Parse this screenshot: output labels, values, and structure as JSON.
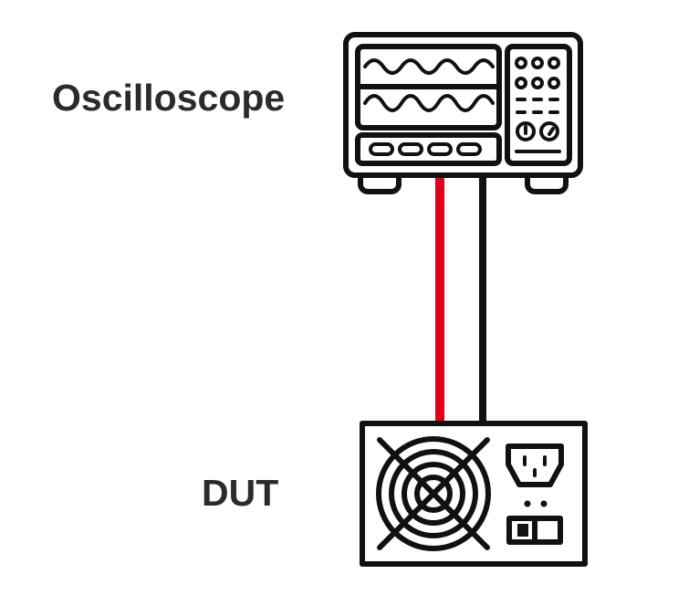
{
  "labels": {
    "oscilloscope": "Oscilloscope",
    "dut": "DUT"
  },
  "colors": {
    "outline": "#111111",
    "probe_signal": "#e0001b",
    "probe_ground": "#111111",
    "label_text": "#2b2b2b"
  },
  "icons": {
    "oscilloscope": "oscilloscope-icon",
    "dut": "power-supply-icon"
  }
}
